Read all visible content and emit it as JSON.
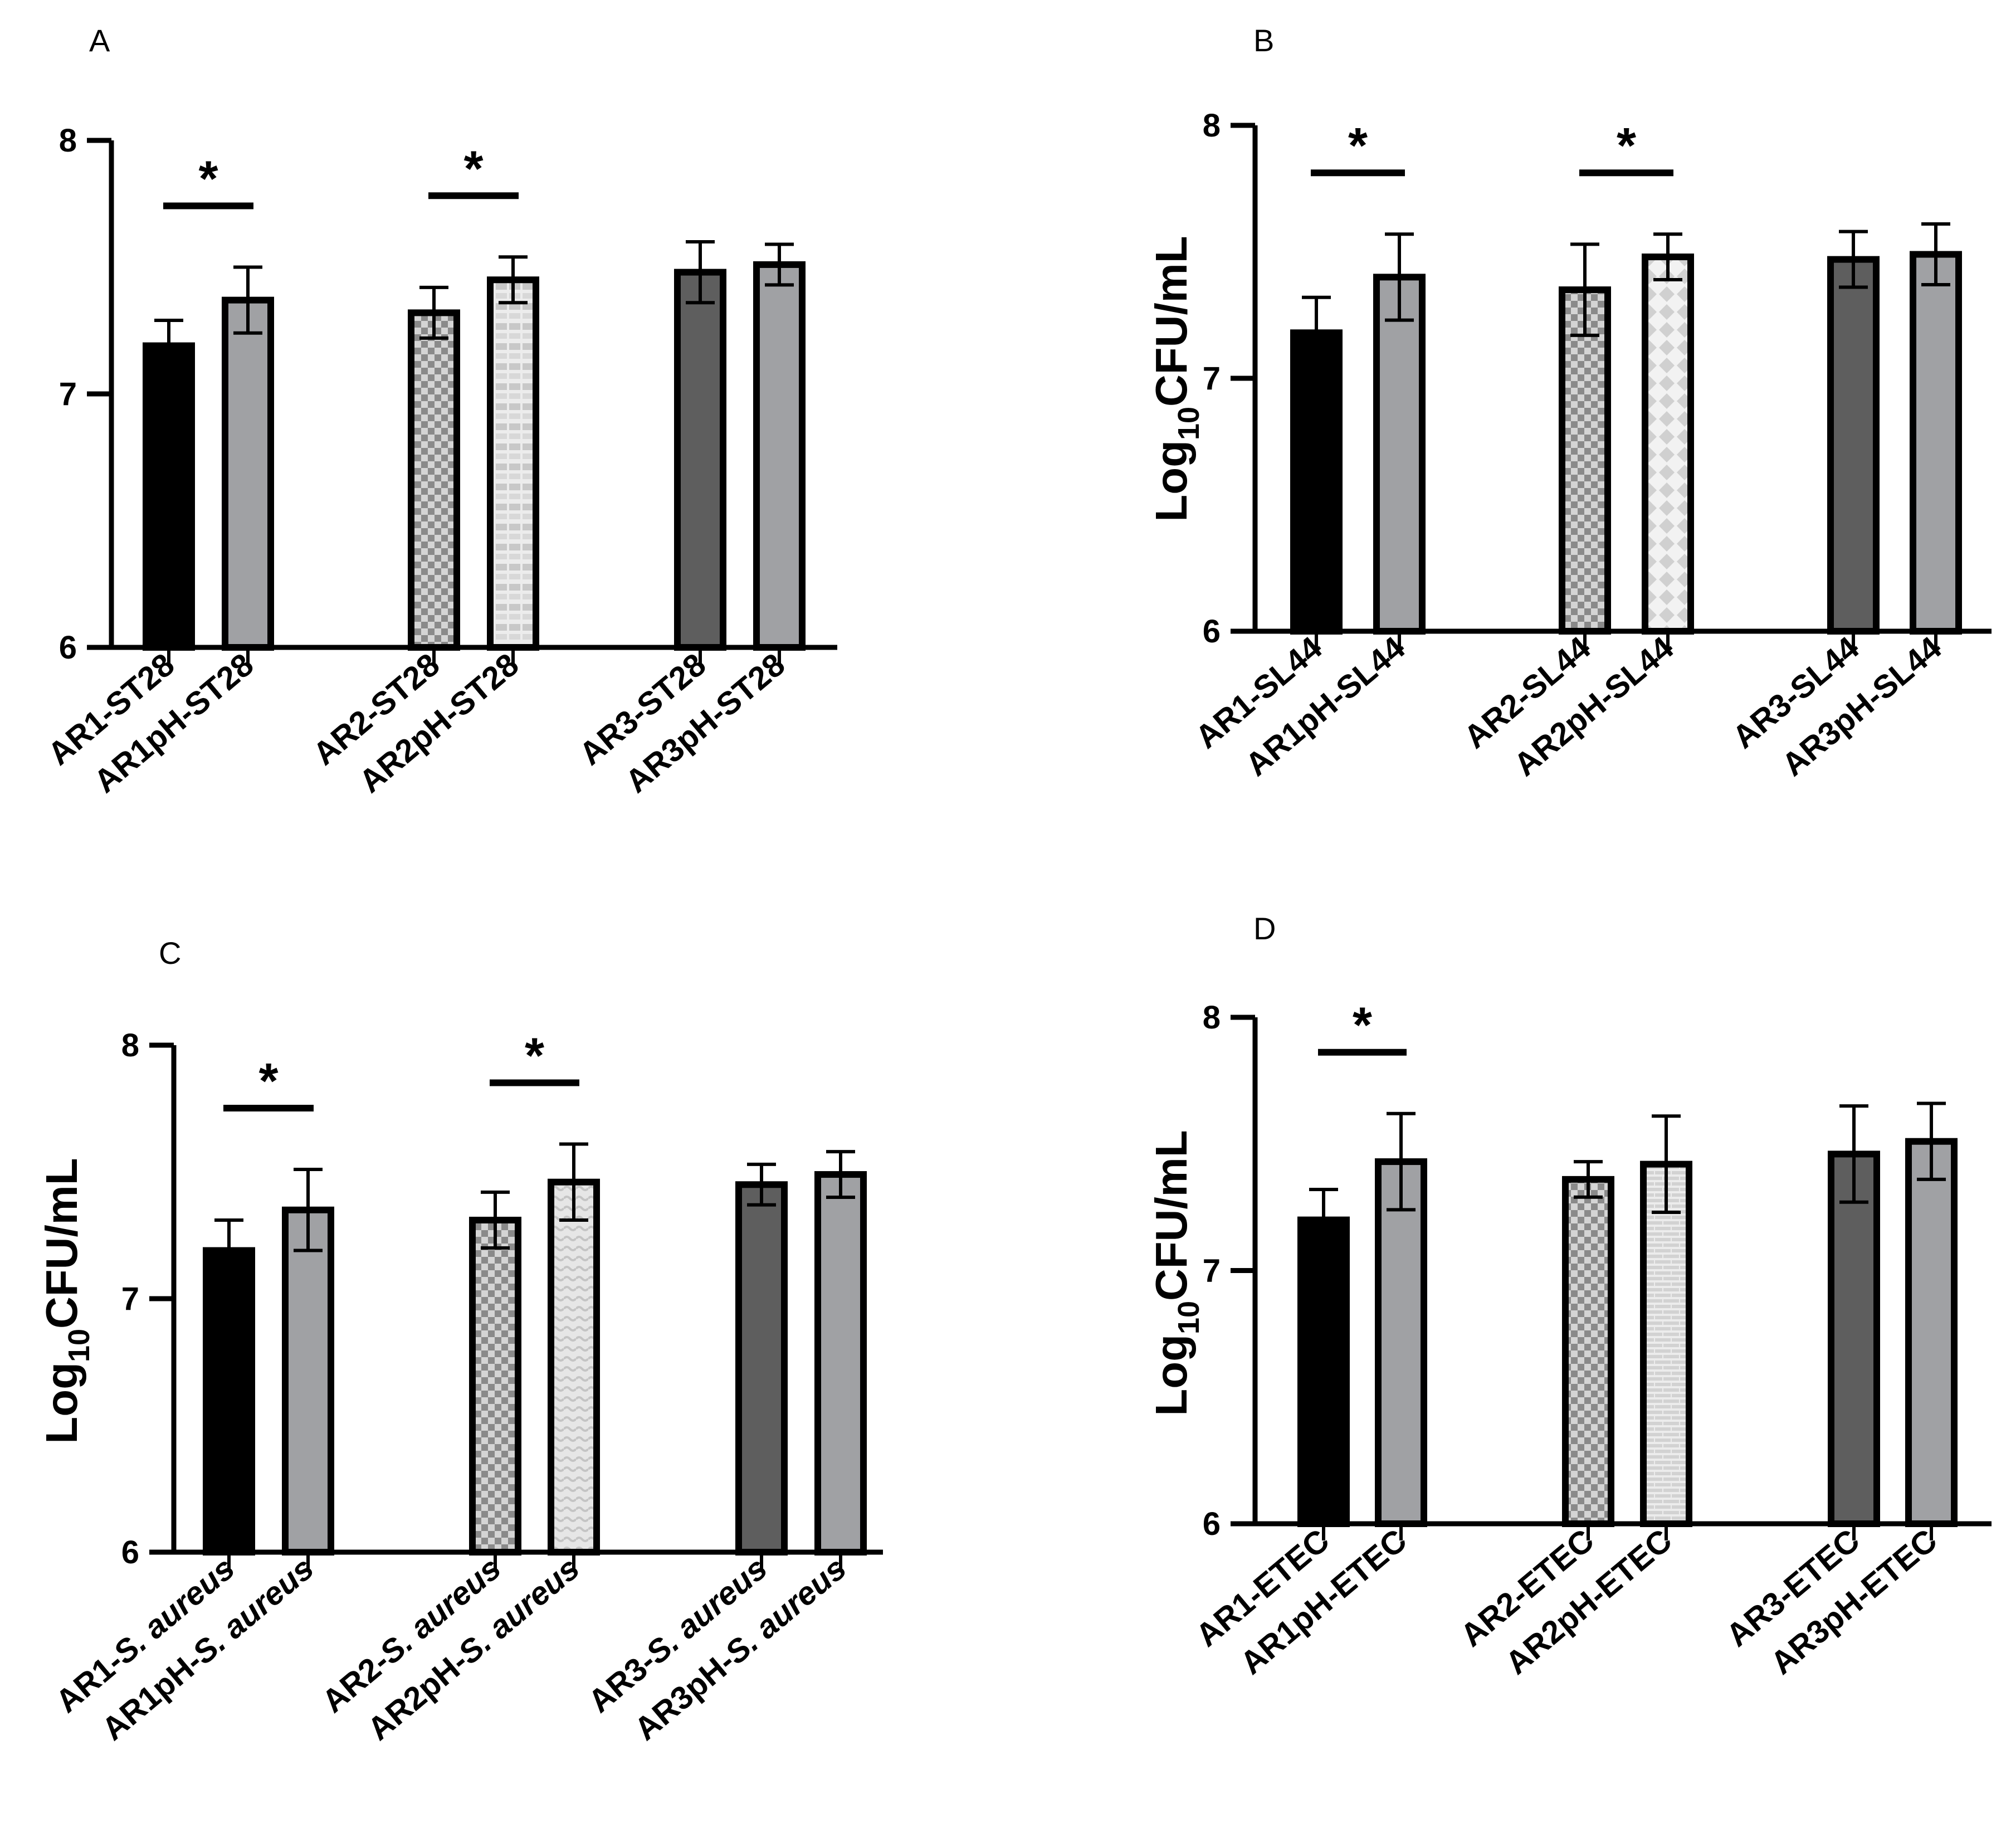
{
  "chart_data": [
    {
      "panel": "A",
      "type": "bar",
      "ylabel": "",
      "ylim": [
        6,
        8
      ],
      "yticks": [
        "6",
        "7",
        "8"
      ],
      "categories": [
        "AR1-ST28",
        "AR1pH-ST28",
        "AR2-ST28",
        "AR2pH-ST28",
        "AR3-ST28",
        "AR3pH-ST28"
      ],
      "values": [
        7.19,
        7.37,
        7.32,
        7.45,
        7.48,
        7.51
      ],
      "errors": [
        0.1,
        0.13,
        0.1,
        0.09,
        0.12,
        0.08
      ],
      "fills": [
        "solid-black",
        "solid-gray",
        "checker",
        "dash-light",
        "solid-dark",
        "solid-gray"
      ],
      "significance": [
        {
          "between": [
            0,
            1
          ],
          "label": "*"
        },
        {
          "between": [
            2,
            3
          ],
          "label": "*"
        }
      ]
    },
    {
      "panel": "B",
      "type": "bar",
      "ylabel": "Log10CFU/mL",
      "ylim": [
        6,
        8
      ],
      "yticks": [
        "6",
        "7",
        "8"
      ],
      "categories": [
        "AR1-SL44",
        "AR1pH-SL44",
        "AR2-SL44",
        "AR2pH-SL44",
        "AR3-SL44",
        "AR3pH-SL44"
      ],
      "values": [
        7.18,
        7.4,
        7.35,
        7.48,
        7.47,
        7.49
      ],
      "errors": [
        0.14,
        0.17,
        0.18,
        0.09,
        0.11,
        0.12
      ],
      "fills": [
        "solid-black",
        "solid-gray",
        "checker",
        "diamond-light",
        "solid-dark",
        "solid-gray"
      ],
      "significance": [
        {
          "between": [
            0,
            1
          ],
          "label": "*"
        },
        {
          "between": [
            2,
            3
          ],
          "label": "*"
        }
      ]
    },
    {
      "panel": "C",
      "type": "bar",
      "ylabel": "Log10CFU/mL",
      "ylim": [
        6,
        8
      ],
      "yticks": [
        "6",
        "7",
        "8"
      ],
      "categories": [
        "AR1-S. aureus",
        "AR1pH-S. aureus",
        "AR2-S. aureus",
        "AR2pH-S. aureus",
        "AR3-S. aureus",
        "AR3pH-S. aureus"
      ],
      "category_parts": [
        [
          "AR1-",
          "S. aureus"
        ],
        [
          "AR1pH-",
          "S. aureus"
        ],
        [
          "AR2-",
          "S. aureus"
        ],
        [
          "AR2pH-",
          "S. aureus"
        ],
        [
          "AR3-",
          "S. aureus"
        ],
        [
          "AR3pH-",
          "S. aureus"
        ]
      ],
      "values": [
        7.19,
        7.35,
        7.31,
        7.46,
        7.45,
        7.49
      ],
      "errors": [
        0.12,
        0.16,
        0.11,
        0.15,
        0.08,
        0.09
      ],
      "fills": [
        "solid-black",
        "solid-gray",
        "checker",
        "wave-light",
        "solid-dark",
        "solid-gray"
      ],
      "significance": [
        {
          "between": [
            0,
            1
          ],
          "label": "*"
        },
        {
          "between": [
            2,
            3
          ],
          "label": "*"
        }
      ]
    },
    {
      "panel": "D",
      "type": "bar",
      "ylabel": "Log10CFU/mL",
      "ylim": [
        6,
        8
      ],
      "yticks": [
        "6",
        "7",
        "8"
      ],
      "categories": [
        "AR1-ETEC",
        "AR1pH-ETEC",
        "AR2-ETEC",
        "AR2pH-ETEC",
        "AR3-ETEC",
        "AR3pH-ETEC"
      ],
      "values": [
        7.2,
        7.43,
        7.36,
        7.42,
        7.46,
        7.51
      ],
      "errors": [
        0.12,
        0.19,
        0.07,
        0.19,
        0.19,
        0.15
      ],
      "fills": [
        "solid-black",
        "solid-gray",
        "checker",
        "brick-light",
        "solid-dark",
        "solid-gray"
      ],
      "significance": [
        {
          "between": [
            0,
            1
          ],
          "label": "*"
        }
      ]
    }
  ],
  "colors": {
    "black": "#000000",
    "bar_gray": "#a0a1a4",
    "bar_dark": "#5e5e5e",
    "checker_a": "#8a8a8a",
    "checker_b": "#d4d4d4",
    "pale": "#e3e3e3",
    "pale_mark": "#c6c6c6"
  }
}
